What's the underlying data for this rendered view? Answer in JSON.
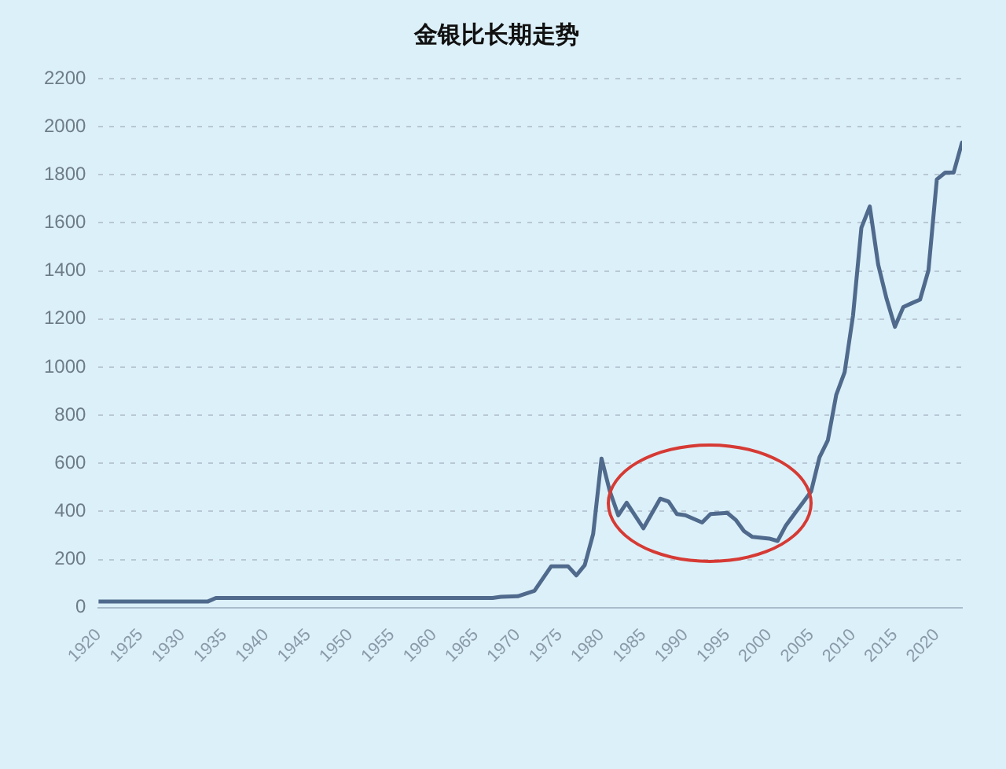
{
  "chart_data": {
    "type": "line",
    "title": "金银比长期走势",
    "x": [
      1920,
      1933,
      1934,
      1967,
      1968,
      1970,
      1972,
      1974,
      1976,
      1977,
      1978,
      1979,
      1980,
      1981,
      1982,
      1983,
      1985,
      1987,
      1988,
      1989,
      1990,
      1992,
      1993,
      1995,
      1996,
      1997,
      1998,
      2000,
      2001,
      2002,
      2003,
      2004,
      2005,
      2006,
      2007,
      2008,
      2009,
      2010,
      2011,
      2012,
      2013,
      2014,
      2015,
      2016,
      2017,
      2018,
      2019,
      2020,
      2021,
      2022,
      2023
    ],
    "series": [
      {
        "color": "#4f6a8c",
        "values": [
          25,
          25,
          40,
          40,
          45,
          47,
          70,
          172,
          172,
          134,
          177,
          306,
          620,
          483,
          384,
          436,
          330,
          453,
          441,
          389,
          384,
          354,
          389,
          394,
          365,
          318,
          294,
          287,
          277,
          342,
          389,
          436,
          483,
          625,
          696,
          885,
          979,
          1214,
          1580,
          1668,
          1427,
          1285,
          1168,
          1250,
          1266,
          1281,
          1403,
          1781,
          1809,
          1809,
          1934
        ]
      }
    ],
    "xlim": [
      1920,
      2023
    ],
    "xticks": [
      1920,
      1925,
      1930,
      1935,
      1940,
      1945,
      1950,
      1955,
      1960,
      1965,
      1970,
      1975,
      1980,
      1985,
      1990,
      1995,
      2000,
      2005,
      2010,
      2015,
      2020
    ],
    "ylim": [
      0,
      2200
    ],
    "yticks": [
      0,
      200,
      400,
      600,
      800,
      1000,
      1200,
      1400,
      1600,
      1800,
      2000,
      2200
    ],
    "grid": "y",
    "legend": false,
    "marker": "none",
    "line_style": "solid"
  }
}
